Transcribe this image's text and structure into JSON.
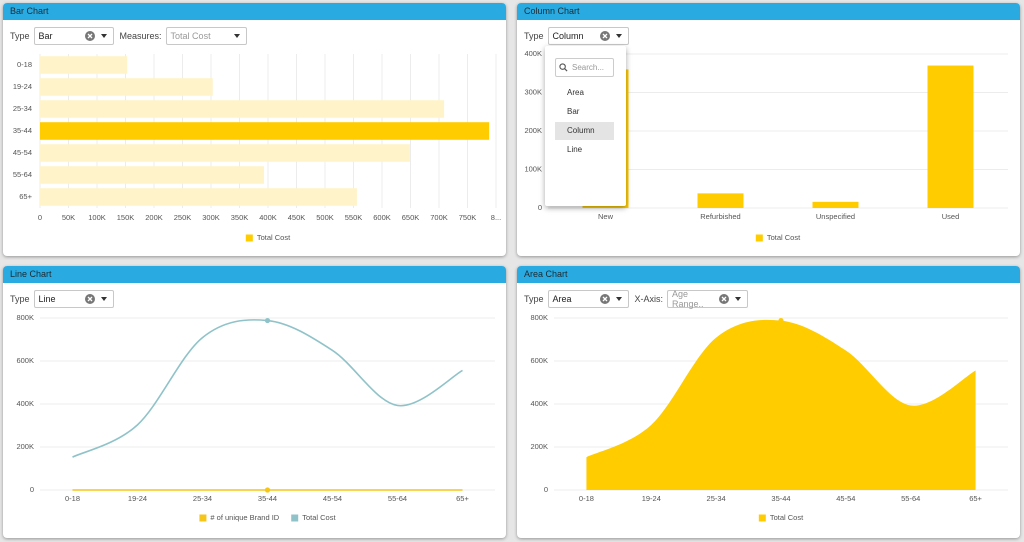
{
  "panels": [
    {
      "title": "Bar Chart",
      "controls": [
        {
          "label": "Type",
          "value": "Bar"
        },
        {
          "label": "Measures:",
          "placeholder": "Total Cost"
        }
      ]
    },
    {
      "title": "Column Chart",
      "controls": [
        {
          "label": "Type",
          "value": "Column"
        }
      ]
    },
    {
      "title": "Line Chart",
      "controls": [
        {
          "label": "Type",
          "value": "Line"
        }
      ]
    },
    {
      "title": "Area Chart",
      "controls": [
        {
          "label": "Type",
          "value": "Area"
        },
        {
          "label": "X-Axis:",
          "placeholder": "Age Range.."
        }
      ]
    }
  ],
  "dropdown": {
    "search": "Search...",
    "options": [
      "Area",
      "Bar",
      "Column",
      "Line"
    ],
    "active": "Column"
  },
  "chart_data": [
    {
      "type": "bar",
      "categories": [
        "0-18",
        "19-24",
        "25-34",
        "35-44",
        "45-54",
        "55-64",
        "65+"
      ],
      "series": [
        {
          "name": "Total Cost",
          "color": "#ffcc00",
          "values": [
            153000,
            303000,
            709000,
            788000,
            649000,
            393000,
            556000
          ]
        }
      ],
      "highlight": "35-44",
      "faded_color": "#fff3c9",
      "xlim": [
        0,
        800000
      ],
      "xticks": [
        0,
        {
          "value": 50000,
          "label": "50K"
        },
        {
          "value": 100000,
          "label": "100K"
        },
        {
          "value": 150000,
          "label": "150K"
        },
        {
          "value": 200000,
          "label": "200K"
        },
        {
          "value": 250000,
          "label": "250K"
        },
        {
          "value": 300000,
          "label": "300K"
        },
        {
          "value": 350000,
          "label": "350K"
        },
        {
          "value": 400000,
          "label": "400K"
        },
        {
          "value": 450000,
          "label": "450K"
        },
        {
          "value": 500000,
          "label": "500K"
        },
        {
          "value": 550000,
          "label": "550K"
        },
        {
          "value": 600000,
          "label": "600K"
        },
        {
          "value": 650000,
          "label": "650K"
        },
        {
          "value": 700000,
          "label": "700K"
        },
        {
          "value": 750000,
          "label": "750K"
        },
        {
          "value": 800000,
          "label": "8..."
        }
      ],
      "grid": true,
      "legend": "bottom"
    },
    {
      "type": "column",
      "categories": [
        "New",
        "Refurbished",
        "Unspecified",
        "Used"
      ],
      "series": [
        {
          "name": "Total Cost",
          "color": "#ffcc00",
          "values": [
            360000,
            38000,
            16000,
            370000
          ]
        }
      ],
      "ylim": [
        0,
        400000
      ],
      "yticks": [
        0,
        {
          "value": 100000,
          "label": "100K"
        },
        {
          "value": 200000,
          "label": "200K"
        },
        {
          "value": 300000,
          "label": "300K"
        },
        {
          "value": 400000,
          "label": "400K"
        }
      ],
      "grid": true,
      "legend": "bottom"
    },
    {
      "type": "line",
      "categories": [
        "0-18",
        "19-24",
        "25-34",
        "35-44",
        "45-54",
        "55-64",
        "65+"
      ],
      "series": [
        {
          "name": "# of unique Brand ID",
          "color": "#f5c518",
          "values": [
            0,
            0,
            0,
            0,
            0,
            0,
            0
          ]
        },
        {
          "name": "Total Cost",
          "color": "#8fc3c9",
          "values": [
            153000,
            303000,
            709000,
            788000,
            649000,
            393000,
            556000
          ]
        }
      ],
      "highlight": "35-44",
      "ylim": [
        0,
        800000
      ],
      "yticks": [
        0,
        {
          "value": 200000,
          "label": "200K"
        },
        {
          "value": 400000,
          "label": "400K"
        },
        {
          "value": 600000,
          "label": "600K"
        },
        {
          "value": 800000,
          "label": "800K"
        }
      ],
      "grid": true,
      "legend": "bottom"
    },
    {
      "type": "area",
      "categories": [
        "0-18",
        "19-24",
        "25-34",
        "35-44",
        "45-54",
        "55-64",
        "65+"
      ],
      "series": [
        {
          "name": "Total Cost",
          "color": "#ffcc00",
          "values": [
            153000,
            303000,
            709000,
            788000,
            649000,
            393000,
            556000
          ]
        }
      ],
      "highlight": "35-44",
      "ylim": [
        0,
        800000
      ],
      "yticks": [
        0,
        {
          "value": 200000,
          "label": "200K"
        },
        {
          "value": 400000,
          "label": "400K"
        },
        {
          "value": 600000,
          "label": "600K"
        },
        {
          "value": 800000,
          "label": "800K"
        }
      ],
      "grid": true,
      "legend": "bottom"
    }
  ]
}
